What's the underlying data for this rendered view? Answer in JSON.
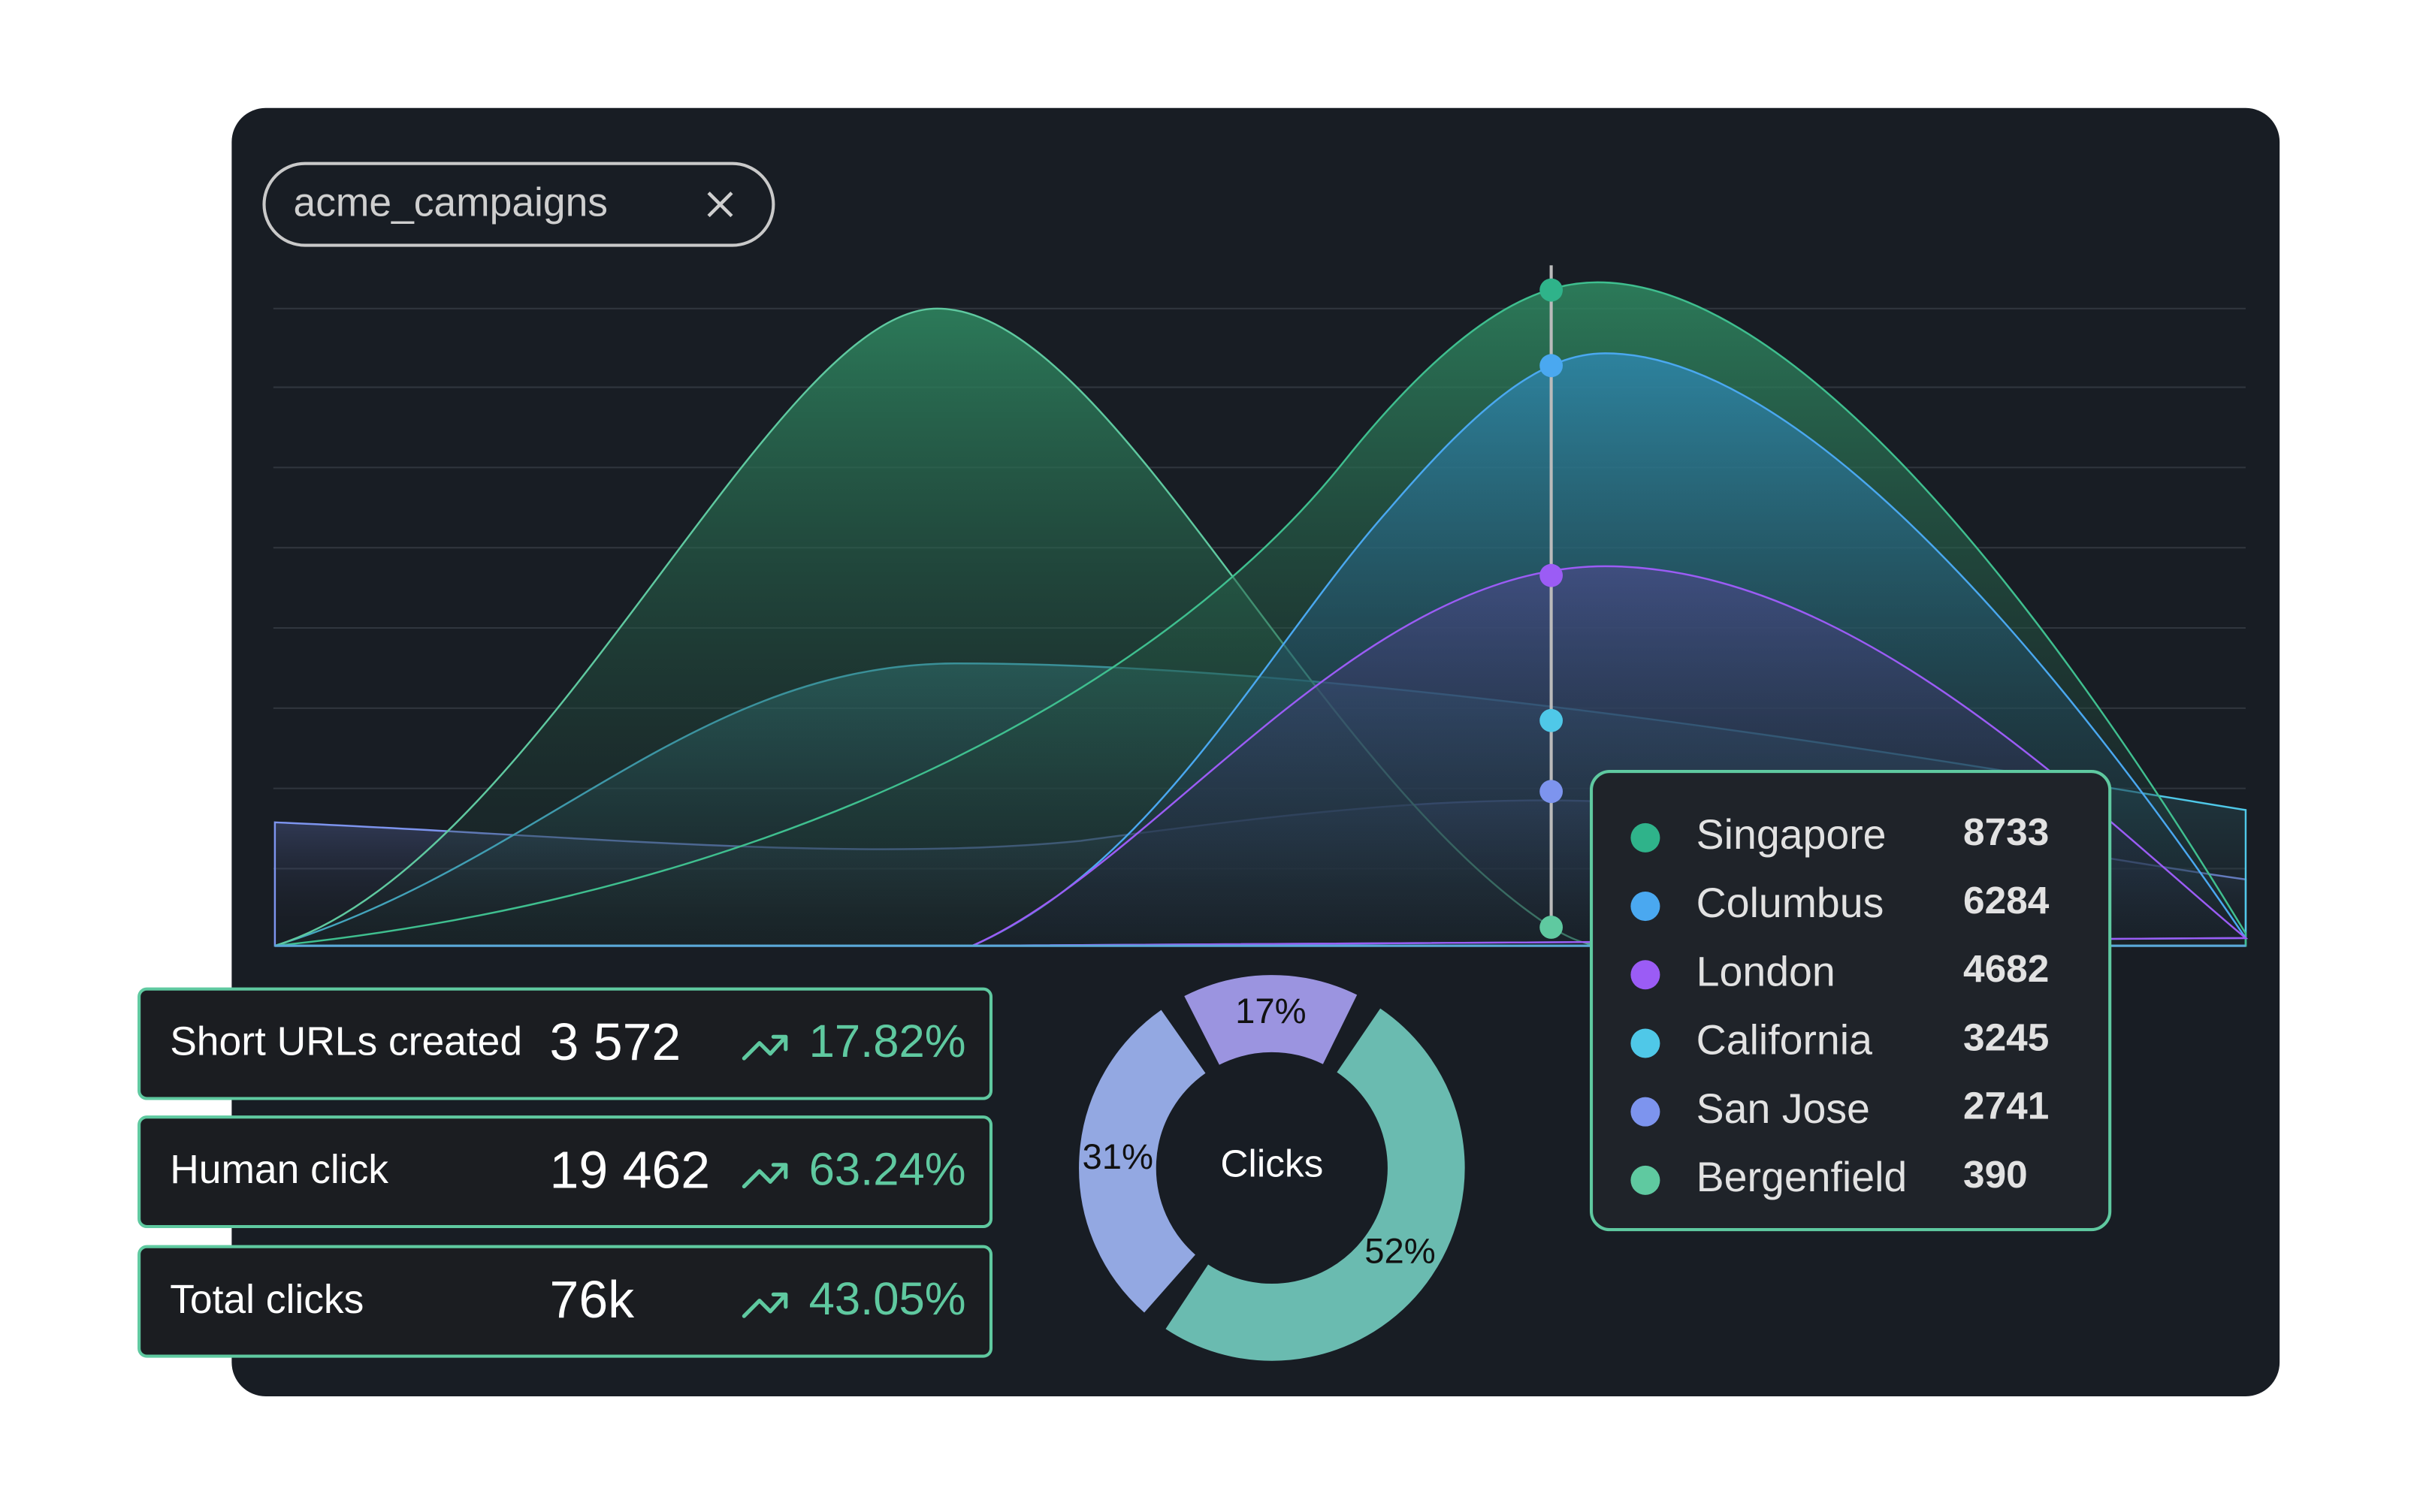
{
  "tag": {
    "label": "acme_campaigns"
  },
  "tooltip": {
    "rows": [
      {
        "name": "Singapore",
        "value": 8733,
        "color": "#2fb38a"
      },
      {
        "name": "Columbus",
        "value": 6284,
        "color": "#4aa8f0"
      },
      {
        "name": "London",
        "value": 4682,
        "color": "#9b5cf5"
      },
      {
        "name": "California",
        "value": 3245,
        "color": "#4fc8e8"
      },
      {
        "name": "San Jose",
        "value": 2741,
        "color": "#7d94ee"
      },
      {
        "name": "Bergenfield",
        "value": 390,
        "color": "#5fc9a0"
      }
    ]
  },
  "stats": [
    {
      "label": "Short URLs created",
      "value": "3 572",
      "change": "17.82%"
    },
    {
      "label": "Human click",
      "value": "19 462",
      "change": "63.24%"
    },
    {
      "label": "Total clicks",
      "value": "76k",
      "change": "43.05%"
    }
  ],
  "chart_data": {
    "type": "donut",
    "center_label": "Clicks",
    "values": [
      17,
      52,
      31
    ],
    "value_labels": [
      "17%",
      "52%",
      "31%"
    ],
    "colors": [
      "#9b94e0",
      "#6abbb0",
      "#93a8e2"
    ]
  }
}
